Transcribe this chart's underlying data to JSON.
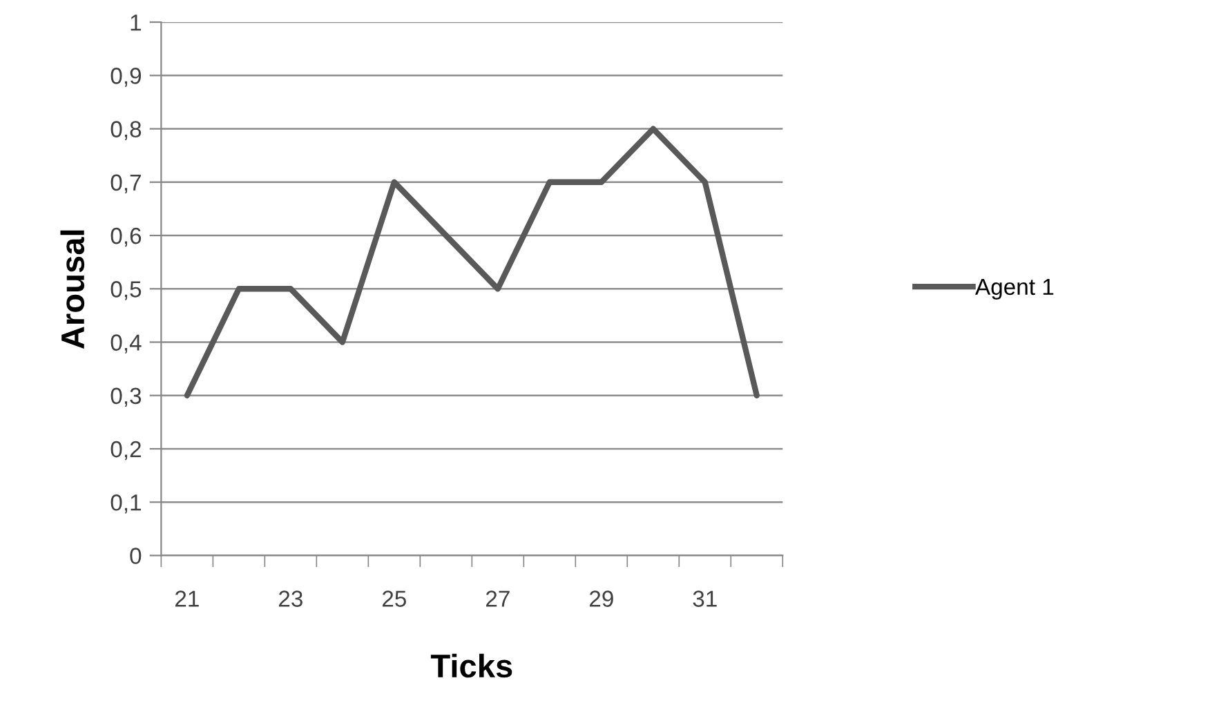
{
  "chart_data": {
    "type": "line",
    "xlabel": "Ticks",
    "ylabel": "Arousal",
    "categories": [
      "21",
      null,
      "23",
      null,
      "25",
      null,
      "27",
      null,
      "29",
      null,
      "31",
      null
    ],
    "series": [
      {
        "name": "Agent 1",
        "color": "#595959",
        "values": [
          0.3,
          0.5,
          0.5,
          0.4,
          0.7,
          0.6,
          0.5,
          0.7,
          0.7,
          0.8,
          0.7,
          0.3
        ]
      }
    ],
    "ylim": [
      0,
      1
    ],
    "yticks": [
      0,
      {
        "value": 0.1,
        "label": "0,1"
      },
      {
        "value": 0.2,
        "label": "0,2"
      },
      {
        "value": 0.3,
        "label": "0,3"
      },
      {
        "value": 0.4,
        "label": "0,4"
      },
      {
        "value": 0.5,
        "label": "0,5"
      },
      {
        "value": 0.6,
        "label": "0,6"
      },
      {
        "value": 0.7,
        "label": "0,7"
      },
      {
        "value": 0.8,
        "label": "0,8"
      },
      {
        "value": 0.9,
        "label": "0,9"
      },
      1
    ],
    "grid": "y",
    "legend": "right",
    "marker": "none",
    "line_style": "solid"
  }
}
